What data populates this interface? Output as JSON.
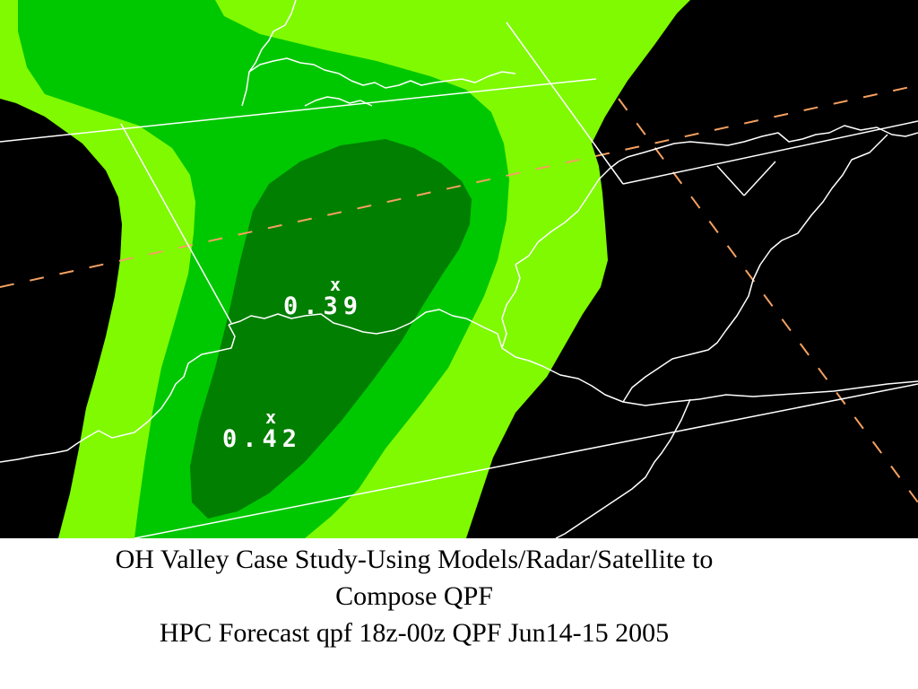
{
  "map": {
    "colors": {
      "background": "#000000",
      "band_light": "#7ffa00",
      "band_medium": "#00c800",
      "band_dark": "#007f00",
      "boundaries": "#ffffff",
      "dashed_lines": "#f5a060"
    },
    "point_values": [
      {
        "marker": "x",
        "value": "0.39"
      },
      {
        "marker": "x",
        "value": "0.42"
      }
    ]
  },
  "caption": {
    "line1": "OH Valley Case Study-Using Models/Radar/Satellite to",
    "line2": "Compose QPF",
    "line3": "HPC Forecast qpf 18z-00z QPF Jun14-15 2005"
  }
}
